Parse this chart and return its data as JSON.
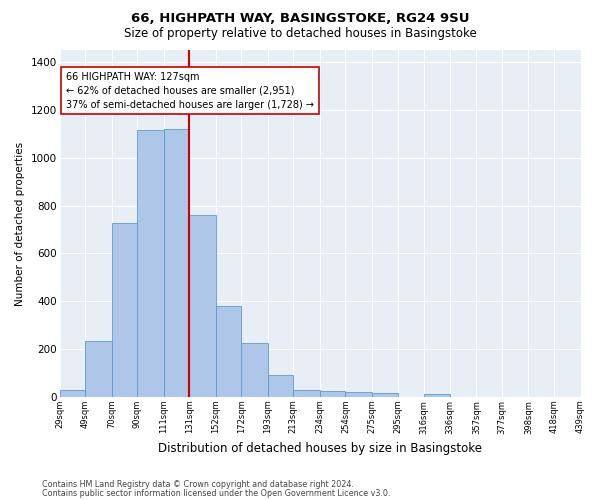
{
  "title_line1": "66, HIGHPATH WAY, BASINGSTOKE, RG24 9SU",
  "title_line2": "Size of property relative to detached houses in Basingstoke",
  "xlabel": "Distribution of detached houses by size in Basingstoke",
  "ylabel": "Number of detached properties",
  "bar_heights": [
    30,
    235,
    725,
    1115,
    1120,
    760,
    380,
    225,
    90,
    30,
    25,
    20,
    15,
    0,
    10,
    0,
    0,
    0,
    0,
    0
  ],
  "bar_edges": [
    29,
    49,
    70,
    90,
    111,
    131,
    152,
    172,
    193,
    213,
    234,
    254,
    275,
    295,
    316,
    336,
    357,
    377,
    398,
    418,
    439
  ],
  "tick_labels": [
    "29sqm",
    "49sqm",
    "70sqm",
    "90sqm",
    "111sqm",
    "131sqm",
    "152sqm",
    "172sqm",
    "193sqm",
    "213sqm",
    "234sqm",
    "254sqm",
    "275sqm",
    "295sqm",
    "316sqm",
    "336sqm",
    "357sqm",
    "377sqm",
    "398sqm",
    "418sqm",
    "439sqm"
  ],
  "bar_color": "#aec6e8",
  "bar_edgecolor": "#5b9bd5",
  "vline_x": 131,
  "vline_color": "#cc0000",
  "annotation_text": "66 HIGHPATH WAY: 127sqm\n← 62% of detached houses are smaller (2,951)\n37% of semi-detached houses are larger (1,728) →",
  "annotation_box_color": "#ffffff",
  "annotation_box_edgecolor": "#cc0000",
  "ylim": [
    0,
    1450
  ],
  "yticks": [
    0,
    200,
    400,
    600,
    800,
    1000,
    1200,
    1400
  ],
  "background_color": "#e8eef5",
  "footer_line1": "Contains HM Land Registry data © Crown copyright and database right 2024.",
  "footer_line2": "Contains public sector information licensed under the Open Government Licence v3.0."
}
